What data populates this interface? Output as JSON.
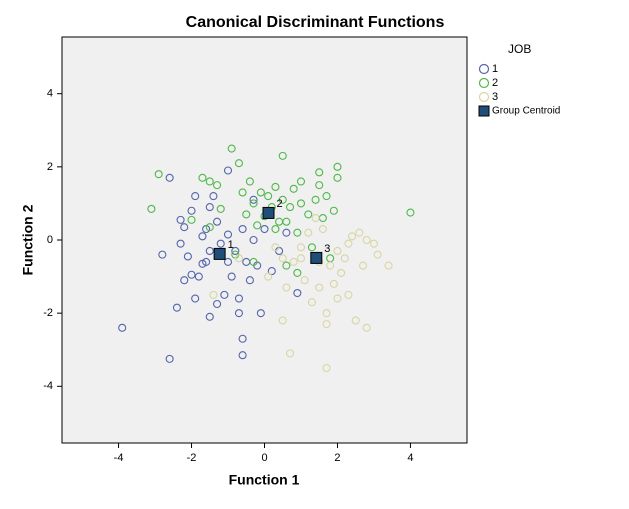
{
  "chart_data": {
    "type": "scatter",
    "title": "Canonical Discriminant Functions",
    "x_label": "Function 1",
    "y_label": "Function 2",
    "legend_title": "JOB",
    "legend_position": "right",
    "xlim": [
      -5.55,
      5.55
    ],
    "ylim": [
      -5.55,
      5.55
    ],
    "xticks": [
      -4,
      -2,
      0,
      2,
      4
    ],
    "yticks": [
      -4,
      -2,
      0,
      2,
      4
    ],
    "grid": false,
    "series": [
      {
        "name": "1",
        "color": "#5564ad",
        "x": [
          -3.9,
          -2.6,
          -2.6,
          -2.8,
          -2.4,
          -2.3,
          -2.2,
          -2.1,
          -2.0,
          -2.0,
          -1.9,
          -1.9,
          -1.8,
          -1.7,
          -1.7,
          -1.6,
          -1.5,
          -1.5,
          -1.4,
          -1.3,
          -1.3,
          -1.2,
          -1.1,
          -1.0,
          -1.0,
          -0.9,
          -0.8,
          -0.7,
          -0.6,
          -0.6,
          -0.6,
          -0.5,
          -0.4,
          -0.3,
          -0.2,
          -0.1,
          0.0,
          0.2,
          0.4,
          0.9,
          -1.5,
          -2.2,
          -1.0,
          -0.3,
          0.6,
          -0.7,
          -1.6,
          -2.3
        ],
        "values": [
          -2.4,
          -3.25,
          1.7,
          -0.4,
          -1.85,
          0.55,
          0.35,
          -0.45,
          -0.95,
          0.8,
          1.2,
          -1.6,
          -1.0,
          0.1,
          -0.65,
          0.3,
          -2.1,
          0.9,
          1.2,
          -1.75,
          0.5,
          -0.1,
          -1.5,
          -0.6,
          0.15,
          -1.0,
          -0.3,
          -1.6,
          -3.15,
          -2.7,
          0.3,
          -0.6,
          -1.1,
          0.0,
          -0.7,
          -2.0,
          0.3,
          -0.85,
          -0.3,
          -1.45,
          -0.3,
          -1.1,
          1.9,
          1.1,
          0.2,
          -2.0,
          -0.6,
          -0.1
        ]
      },
      {
        "name": "2",
        "color": "#4fb84a",
        "x": [
          -3.1,
          -2.9,
          -1.7,
          -1.5,
          -1.3,
          -1.2,
          -0.9,
          -0.7,
          -0.6,
          -0.5,
          -0.4,
          -0.3,
          -0.2,
          -0.1,
          0.1,
          0.2,
          0.3,
          0.4,
          0.5,
          0.5,
          0.6,
          0.7,
          0.8,
          0.9,
          1.0,
          1.2,
          1.3,
          1.5,
          1.5,
          1.6,
          1.7,
          1.9,
          2.0,
          2.0,
          1.8,
          4.0,
          -2.0,
          0.0,
          0.3,
          -0.8,
          -0.3,
          0.6,
          1.0,
          1.4,
          -1.5,
          0.9
        ],
        "values": [
          0.85,
          1.8,
          1.7,
          1.6,
          1.5,
          0.85,
          2.5,
          2.1,
          1.3,
          0.7,
          1.6,
          1.0,
          0.4,
          1.3,
          1.2,
          0.9,
          1.45,
          0.5,
          2.3,
          1.1,
          -0.7,
          0.9,
          1.4,
          0.2,
          1.6,
          0.7,
          -0.2,
          1.5,
          1.85,
          0.6,
          1.2,
          0.8,
          2.0,
          1.7,
          -0.5,
          0.75,
          0.55,
          0.65,
          0.3,
          -0.4,
          -0.6,
          0.5,
          1.0,
          1.1,
          0.35,
          -0.9
        ]
      },
      {
        "name": "3",
        "color": "#d9d5a3",
        "x": [
          -1.4,
          -0.7,
          0.1,
          0.5,
          0.6,
          0.7,
          0.8,
          1.0,
          1.1,
          1.2,
          1.3,
          1.5,
          1.6,
          1.7,
          1.7,
          1.7,
          1.8,
          1.9,
          2.0,
          2.1,
          2.2,
          2.3,
          2.5,
          2.6,
          2.7,
          2.8,
          2.8,
          3.0,
          3.1,
          3.4,
          1.4,
          2.4,
          0.3,
          1.0,
          2.0,
          1.5,
          0.5,
          2.3
        ],
        "values": [
          -1.5,
          -0.5,
          -1.0,
          -2.2,
          -1.3,
          -3.1,
          -0.6,
          -0.2,
          -1.1,
          0.2,
          -1.7,
          -1.3,
          0.3,
          -2.0,
          -2.3,
          -3.5,
          -0.7,
          -1.2,
          -1.6,
          -0.9,
          -0.5,
          -0.1,
          -2.2,
          0.2,
          -0.7,
          -2.4,
          0.0,
          -0.1,
          -0.4,
          -0.7,
          0.6,
          0.1,
          -0.2,
          -0.5,
          -0.3,
          -0.6,
          -0.5,
          -1.5
        ]
      },
      {
        "name": "Group Centroid",
        "color": "#1f4e79",
        "marker": "square",
        "x": [
          -1.23,
          0.11,
          1.42
        ],
        "values": [
          -0.38,
          0.74,
          -0.49
        ],
        "point_labels": [
          "1",
          "2",
          "3"
        ]
      }
    ]
  }
}
